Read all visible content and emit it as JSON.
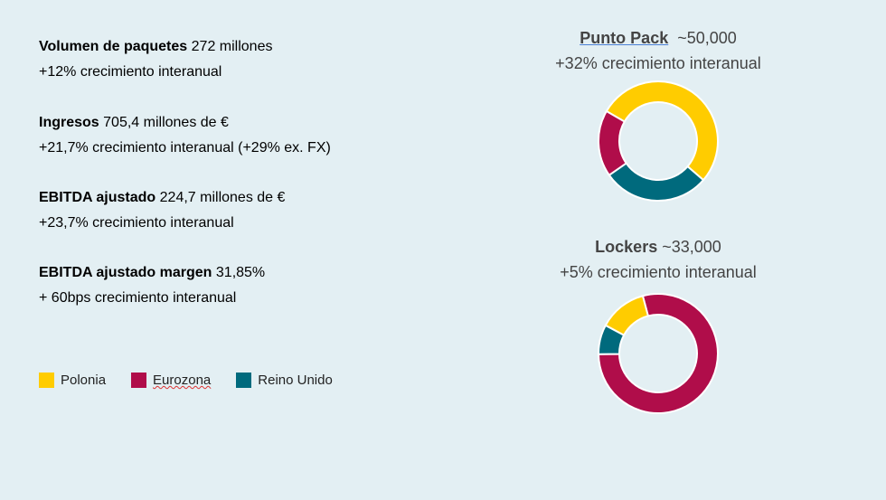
{
  "kpis": [
    {
      "label": "Volumen de paquetes",
      "value": "272 millones",
      "growth": "+12% crecimiento interanual"
    },
    {
      "label": "Ingresos",
      "value": "705,4 millones de €",
      "growth": "+21,7% crecimiento interanual (+29% ex. FX)"
    },
    {
      "label": "EBITDA ajustado",
      "value": "224,7 millones de €",
      "growth": "+23,7% crecimiento interanual"
    },
    {
      "label": "EBITDA ajustado margen",
      "value": "31,85%",
      "growth": "+ 60bps crecimiento interanual"
    }
  ],
  "legend": [
    {
      "label": "Polonia",
      "color": "#ffcc00"
    },
    {
      "label": "Eurozona",
      "color": "#b00d4a"
    },
    {
      "label": "Reino Unido",
      "color": "#006a7d"
    }
  ],
  "chart_data": [
    {
      "type": "pie",
      "variant": "donut",
      "title": "Punto Pack",
      "title_value": "~50,000",
      "subtitle": "+32% crecimiento interanual",
      "categories": [
        "Polonia",
        "Reino Unido",
        "Eurozona"
      ],
      "values": [
        53,
        29,
        18
      ]
    },
    {
      "type": "pie",
      "variant": "donut",
      "title": "Lockers",
      "title_value": "~33,000",
      "subtitle": "+5% crecimiento interanual",
      "categories": [
        "Eurozona",
        "Reino Unido",
        "Polonia"
      ],
      "values": [
        79,
        8,
        13
      ]
    }
  ]
}
